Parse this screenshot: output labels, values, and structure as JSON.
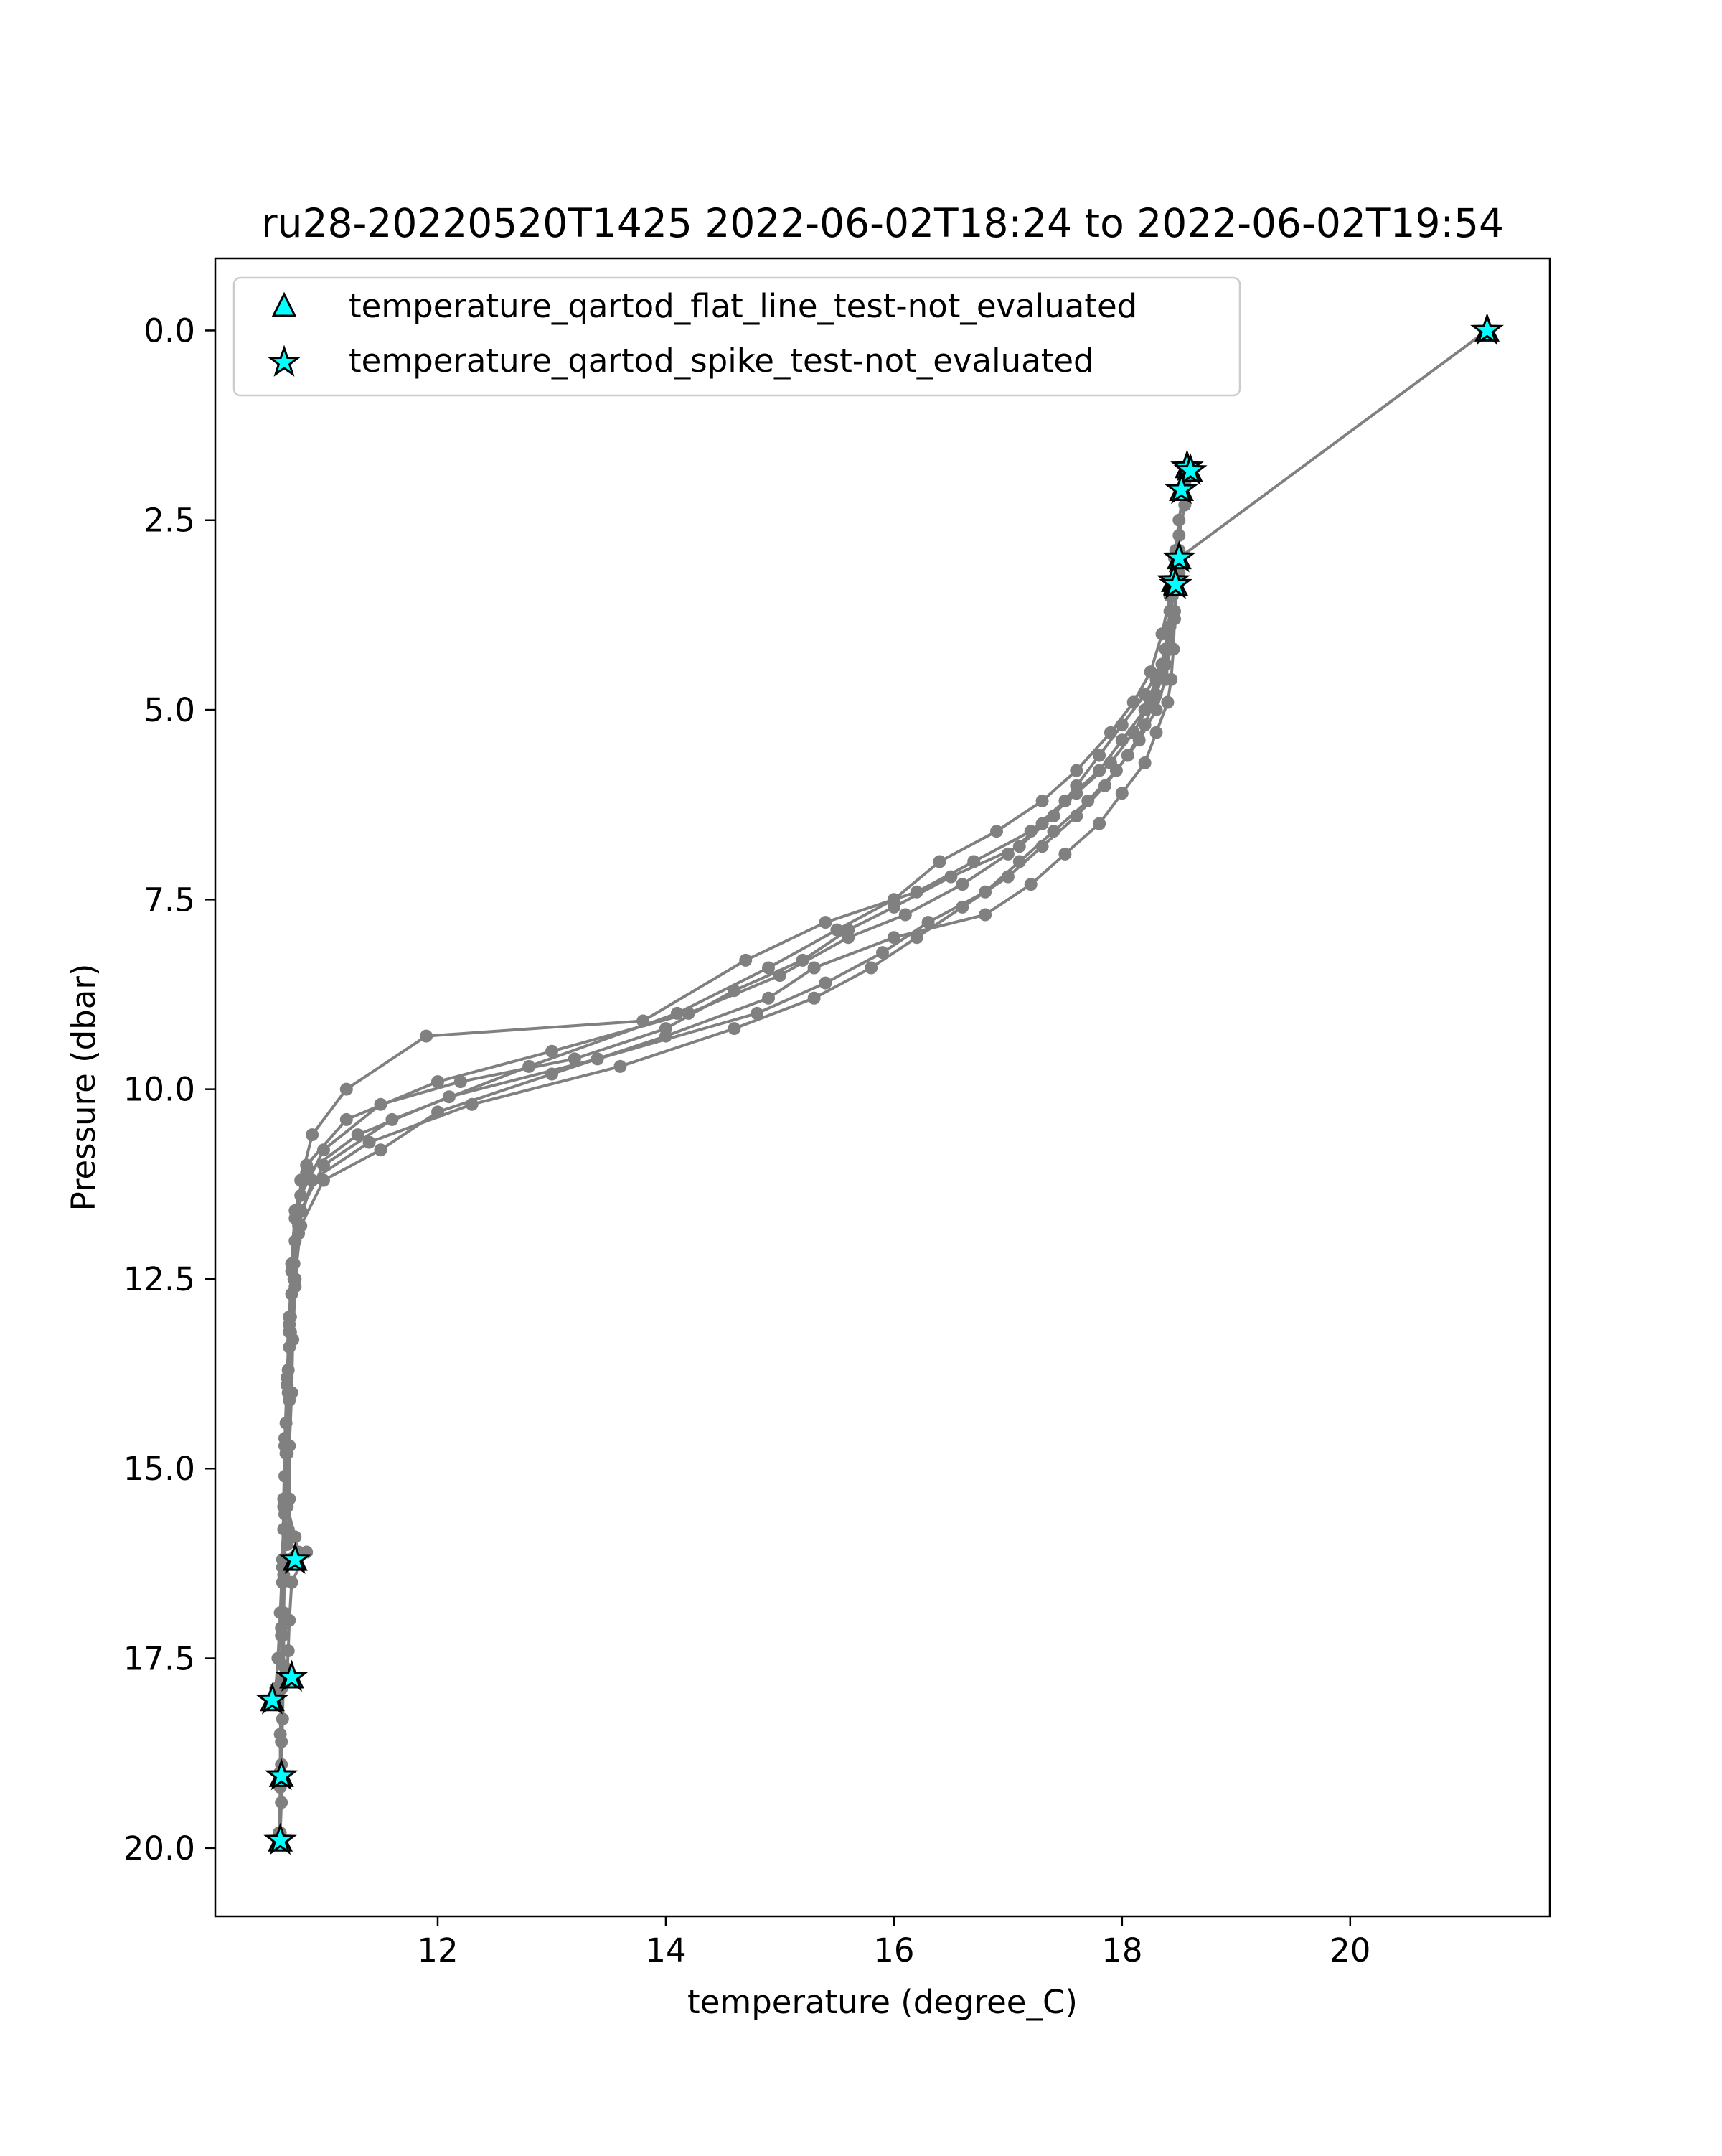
{
  "chart_data": {
    "type": "line",
    "title": "ru28-20220520T1425 2022-06-02T18:24 to 2022-06-02T19:54",
    "xlabel": "temperature (degree_C)",
    "ylabel": "Pressure (dbar)",
    "xlim": [
      10.05,
      21.75
    ],
    "ylim": [
      20.9,
      -0.95
    ],
    "y_inverted": true,
    "grid": false,
    "legend_position": "top-left",
    "x_ticks": [
      {
        "value": 12,
        "label": "12"
      },
      {
        "value": 14,
        "label": "14"
      },
      {
        "value": 16,
        "label": "16"
      },
      {
        "value": 18,
        "label": "18"
      },
      {
        "value": 20,
        "label": "20"
      }
    ],
    "y_ticks": [
      {
        "value": 0.0,
        "label": "0.0"
      },
      {
        "value": 2.5,
        "label": "2.5"
      },
      {
        "value": 5.0,
        "label": "5.0"
      },
      {
        "value": 7.5,
        "label": "7.5"
      },
      {
        "value": 10.0,
        "label": "10.0"
      },
      {
        "value": 12.5,
        "label": "12.5"
      },
      {
        "value": 15.0,
        "label": "15.0"
      },
      {
        "value": 17.5,
        "label": "17.5"
      },
      {
        "value": 20.0,
        "label": "20.0"
      }
    ],
    "profile_color": "#808080",
    "flag_color": "#00ffff",
    "legend": [
      {
        "label": "temperature_qartod_flat_line_test-not_evaluated",
        "marker": "triangle"
      },
      {
        "label": "temperature_qartod_spike_test-not_evaluated",
        "marker": "star"
      }
    ],
    "series": [
      {
        "x": [
          18.6,
          18.55,
          18.5,
          18.48,
          18.47,
          18.46,
          18.45,
          18.43,
          18.4,
          18.3,
          18.2,
          18.0,
          17.8,
          17.5,
          17.2,
          16.8,
          16.0,
          15.3,
          14.9,
          14.0,
          13.0,
          12.0,
          11.5,
          11.0,
          10.8,
          10.75,
          10.7,
          10.7,
          10.68,
          10.67,
          10.66,
          10.65,
          10.65,
          10.64,
          10.63,
          10.63,
          10.62,
          10.62
        ],
        "y": [
          1.85,
          2.3,
          2.7,
          3.1,
          3.4,
          3.8,
          4.2,
          4.6,
          4.9,
          5.3,
          5.7,
          6.1,
          6.5,
          6.9,
          7.3,
          7.7,
          8.0,
          8.4,
          8.8,
          9.3,
          9.8,
          10.3,
          10.8,
          11.2,
          11.8,
          12.5,
          13.2,
          14.0,
          14.8,
          15.5,
          16.2,
          16.9,
          17.6,
          18.3,
          18.9,
          19.4,
          19.8,
          19.9
        ]
      },
      {
        "x": [
          18.45,
          18.42,
          18.38,
          18.3,
          18.2,
          18.0,
          17.8,
          17.5,
          17.2,
          16.7,
          16.2,
          15.4,
          14.7,
          13.8,
          11.9,
          11.2,
          10.9,
          10.8,
          10.78,
          10.75,
          10.73,
          10.72,
          10.7,
          10.7,
          10.69,
          10.68,
          10.85,
          10.72,
          10.7,
          10.69,
          10.68,
          10.67
        ],
        "y": [
          3.3,
          3.7,
          4.2,
          4.6,
          5.0,
          5.4,
          5.8,
          6.2,
          6.6,
          7.0,
          7.4,
          7.8,
          8.3,
          9.1,
          9.3,
          10.0,
          10.6,
          11.2,
          11.9,
          12.6,
          13.3,
          14.0,
          14.7,
          15.4,
          15.8,
          16.0,
          16.1,
          16.5,
          17.0,
          17.4,
          17.7,
          17.75
        ]
      },
      {
        "x": [
          18.5,
          18.45,
          18.42,
          18.35,
          18.2,
          18.0,
          17.8,
          17.6,
          17.4,
          17.1,
          16.5,
          16.0,
          15.6,
          15.2,
          14.6,
          14.0,
          13.2,
          12.2,
          11.5,
          11.0,
          10.8,
          10.75,
          10.72,
          10.7,
          10.7,
          10.68,
          10.68,
          10.75,
          10.78,
          10.75,
          10.7
        ],
        "y": [
          2.9,
          3.4,
          3.9,
          4.4,
          4.8,
          5.2,
          5.6,
          6.0,
          6.4,
          6.8,
          7.2,
          7.6,
          7.9,
          8.3,
          8.7,
          9.2,
          9.6,
          9.9,
          10.2,
          10.8,
          11.4,
          12.0,
          12.7,
          13.4,
          14.1,
          14.8,
          15.5,
          15.9,
          16.1,
          16.15,
          16.2
        ]
      },
      {
        "x": [
          18.47,
          18.44,
          18.4,
          18.35,
          18.25,
          18.1,
          17.9,
          17.6,
          17.3,
          17.0,
          16.6,
          16.1,
          15.6,
          15.0,
          14.2,
          13.0,
          12.0,
          11.2,
          10.85,
          10.75,
          10.72,
          10.7,
          10.68,
          10.66,
          10.65,
          10.64,
          10.62,
          10.6,
          10.58,
          10.55
        ],
        "y": [
          2.9,
          3.5,
          4.0,
          4.5,
          4.9,
          5.3,
          5.7,
          6.1,
          6.5,
          6.9,
          7.3,
          7.7,
          8.0,
          8.5,
          9.0,
          9.5,
          9.9,
          10.4,
          11.0,
          11.6,
          12.3,
          13.0,
          13.8,
          14.6,
          15.4,
          16.2,
          16.9,
          17.5,
          17.9,
          18.05
        ]
      },
      {
        "x": [
          18.5,
          18.46,
          18.42,
          18.38,
          18.3,
          18.15,
          17.95,
          17.7,
          17.4,
          17.1,
          16.8,
          16.3,
          15.9,
          15.4,
          14.8,
          13.4,
          12.1,
          11.3,
          10.85,
          10.75,
          10.72,
          10.7,
          10.68,
          10.66,
          10.65,
          10.64,
          10.63,
          10.63,
          10.63,
          10.62
        ],
        "y": [
          3.2,
          3.7,
          4.2,
          4.6,
          5.0,
          5.4,
          5.8,
          6.2,
          6.6,
          7.0,
          7.4,
          7.8,
          8.2,
          8.6,
          9.0,
          9.6,
          10.1,
          10.6,
          11.1,
          11.7,
          12.4,
          13.1,
          13.9,
          14.7,
          15.5,
          16.3,
          17.1,
          17.9,
          18.6,
          19.0
        ]
      },
      {
        "x": [
          18.45,
          18.42,
          18.38,
          18.3,
          18.2,
          18.05,
          17.85,
          17.6,
          17.3,
          17.0,
          16.6,
          16.2,
          15.8,
          15.3,
          14.6,
          13.6,
          12.3,
          11.4,
          10.9,
          10.78,
          10.74,
          10.71,
          10.69,
          10.67,
          10.66,
          10.65,
          10.64,
          10.63
        ],
        "y": [
          3.4,
          3.9,
          4.4,
          4.8,
          5.2,
          5.6,
          6.0,
          6.4,
          6.8,
          7.2,
          7.6,
          8.0,
          8.4,
          8.8,
          9.2,
          9.7,
          10.2,
          10.7,
          11.2,
          11.8,
          12.5,
          13.2,
          14.0,
          14.8,
          15.6,
          16.4,
          17.2,
          17.8
        ]
      },
      {
        "x": [
          18.55,
          18.5,
          18.46,
          18.42,
          18.35,
          18.25,
          18.1,
          17.9,
          17.6,
          17.3,
          16.9,
          16.4,
          16.0,
          15.5,
          14.9,
          14.1,
          12.8,
          11.6,
          11.0,
          10.8,
          10.74,
          10.71,
          10.69,
          10.67,
          10.66,
          10.65,
          10.64,
          10.63,
          10.63,
          10.62,
          10.62,
          10.61
        ],
        "y": [
          2.0,
          2.5,
          3.0,
          3.5,
          4.0,
          4.5,
          4.9,
          5.3,
          5.8,
          6.2,
          6.6,
          7.0,
          7.5,
          7.9,
          8.4,
          9.0,
          9.7,
          10.4,
          11.0,
          11.6,
          12.3,
          13.0,
          13.7,
          14.4,
          15.1,
          15.8,
          16.5,
          17.2,
          17.9,
          18.5,
          19.2,
          19.8
        ]
      },
      {
        "x": [
          21.2,
          18.5
        ],
        "y": [
          0.0,
          3.0
        ]
      }
    ],
    "flag_points": [
      {
        "x": 21.2,
        "y": 0.0
      },
      {
        "x": 18.57,
        "y": 1.8
      },
      {
        "x": 18.6,
        "y": 1.85
      },
      {
        "x": 18.52,
        "y": 2.1
      },
      {
        "x": 18.5,
        "y": 3.0
      },
      {
        "x": 18.45,
        "y": 3.3
      },
      {
        "x": 18.47,
        "y": 3.35
      },
      {
        "x": 10.75,
        "y": 16.2
      },
      {
        "x": 10.72,
        "y": 17.75
      },
      {
        "x": 10.55,
        "y": 18.05
      },
      {
        "x": 10.63,
        "y": 19.05
      },
      {
        "x": 10.62,
        "y": 19.9
      }
    ]
  }
}
